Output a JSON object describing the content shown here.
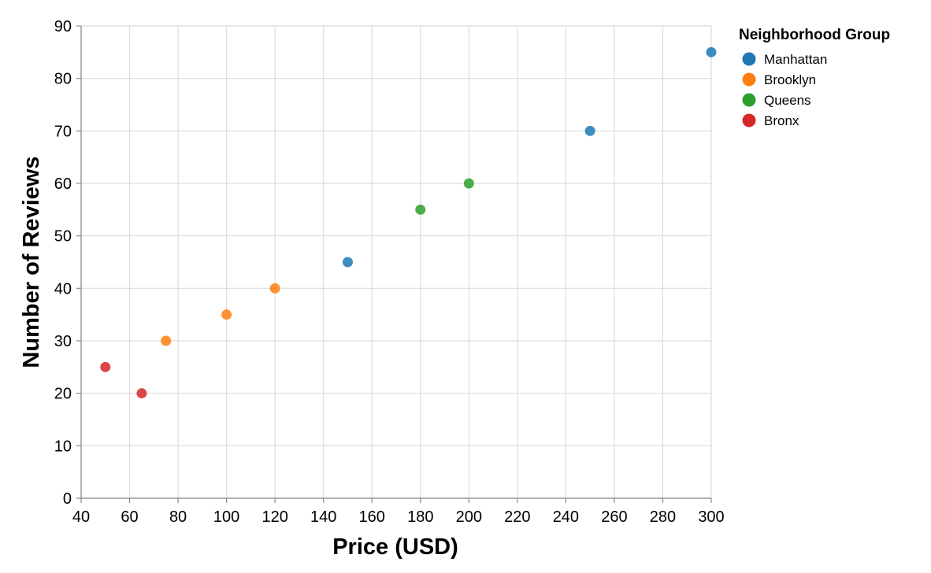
{
  "chart_data": {
    "type": "scatter",
    "title": "",
    "xlabel": "Price (USD)",
    "ylabel": "Number of Reviews",
    "xlim": [
      40,
      300
    ],
    "ylim": [
      0,
      90
    ],
    "x_ticks": [
      40,
      60,
      80,
      100,
      120,
      140,
      160,
      180,
      200,
      220,
      240,
      260,
      280,
      300
    ],
    "y_ticks": [
      0,
      10,
      20,
      30,
      40,
      50,
      60,
      70,
      80,
      90
    ],
    "grid": true,
    "legend": {
      "title": "Neighborhood Group",
      "position": "top-right"
    },
    "series": [
      {
        "name": "Manhattan",
        "color": "#1f77b4",
        "points": [
          [
            150,
            45
          ],
          [
            250,
            70
          ],
          [
            300,
            85
          ]
        ]
      },
      {
        "name": "Brooklyn",
        "color": "#ff7f0e",
        "points": [
          [
            75,
            30
          ],
          [
            100,
            35
          ],
          [
            120,
            40
          ]
        ]
      },
      {
        "name": "Queens",
        "color": "#2ca02c",
        "points": [
          [
            180,
            55
          ],
          [
            200,
            60
          ]
        ]
      },
      {
        "name": "Bronx",
        "color": "#d62728",
        "points": [
          [
            50,
            25
          ],
          [
            65,
            20
          ]
        ]
      }
    ]
  }
}
